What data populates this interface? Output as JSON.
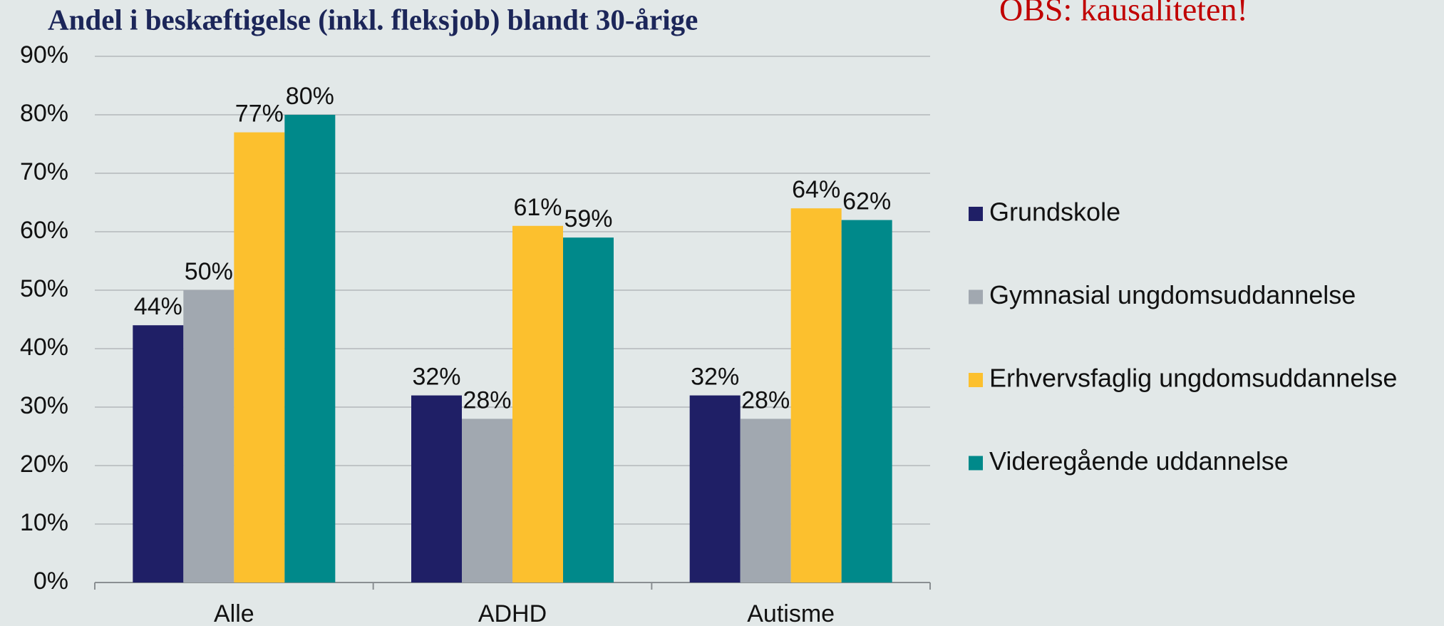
{
  "chart_data": {
    "type": "bar",
    "title": "Andel i beskæftigelse (inkl. fleksjob) blandt 30-årige",
    "annotation": "OBS: kausaliteten!",
    "categories": [
      "Alle",
      "ADHD",
      "Autisme"
    ],
    "series": [
      {
        "name": "Grundskole",
        "color": "#1f1f66",
        "values": [
          44,
          32,
          32
        ],
        "value_labels": [
          "44%",
          "32%",
          "32%"
        ]
      },
      {
        "name": "Gymnasial ungdomsuddannelse",
        "color": "#a1a8b0",
        "values": [
          50,
          28,
          28
        ],
        "value_labels": [
          "50%",
          "28%",
          "28%"
        ]
      },
      {
        "name": "Erhvervsfaglig ungdomsuddannelse",
        "color": "#fcc02e",
        "values": [
          77,
          61,
          64
        ],
        "value_labels": [
          "77%",
          "61%",
          "64%"
        ]
      },
      {
        "name": "Videregående uddannelse",
        "color": "#00898a",
        "values": [
          80,
          59,
          62
        ],
        "value_labels": [
          "80%",
          "59%",
          "62%"
        ]
      }
    ],
    "ylim": [
      0,
      90
    ],
    "yticks": [
      {
        "value": 0,
        "label": "0%"
      },
      {
        "value": 10,
        "label": "10%"
      },
      {
        "value": 20,
        "label": "20%"
      },
      {
        "value": 30,
        "label": "30%"
      },
      {
        "value": 40,
        "label": "40%"
      },
      {
        "value": 50,
        "label": "50%"
      },
      {
        "value": 60,
        "label": "60%"
      },
      {
        "value": 70,
        "label": "70%"
      },
      {
        "value": 80,
        "label": "80%"
      },
      {
        "value": 90,
        "label": "90%"
      }
    ],
    "grid": true,
    "legend": "right"
  }
}
